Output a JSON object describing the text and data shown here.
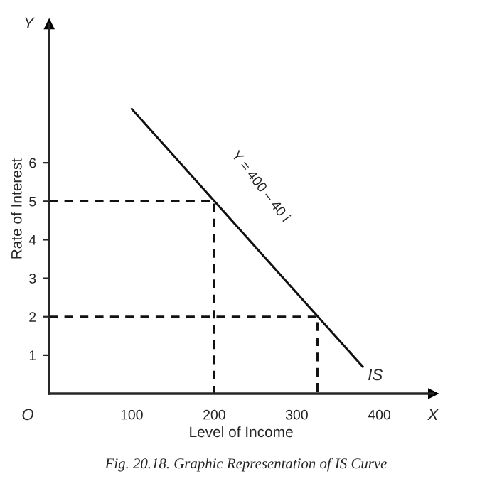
{
  "chart_data": {
    "type": "line",
    "xlabel": "Level of Income",
    "ylabel": "Rate of Interest",
    "xlim": [
      0,
      465
    ],
    "ylim": [
      0,
      9.6
    ],
    "xticks": [
      100,
      200,
      300,
      400
    ],
    "yticks": [
      1,
      2,
      3,
      4,
      5,
      6
    ],
    "grid": false,
    "legend": false,
    "marker": "none",
    "series": [
      {
        "name": "IS",
        "color": "#111111",
        "x": [
          100,
          380
        ],
        "values": [
          7.4,
          0.7
        ],
        "line_style": "solid"
      },
      {
        "color": "#111111",
        "x": [
          0,
          200,
          200
        ],
        "values": [
          5,
          5,
          0
        ],
        "line_style": "dashed"
      },
      {
        "color": "#111111",
        "x": [
          0,
          325,
          325
        ],
        "values": [
          2,
          2,
          0
        ],
        "line_style": "dashed"
      }
    ],
    "annotations": [
      "Y = 400 – 40 i",
      "O",
      "X",
      "Y",
      "Fig. 20.18. Graphic Representation of IS Curve"
    ]
  }
}
